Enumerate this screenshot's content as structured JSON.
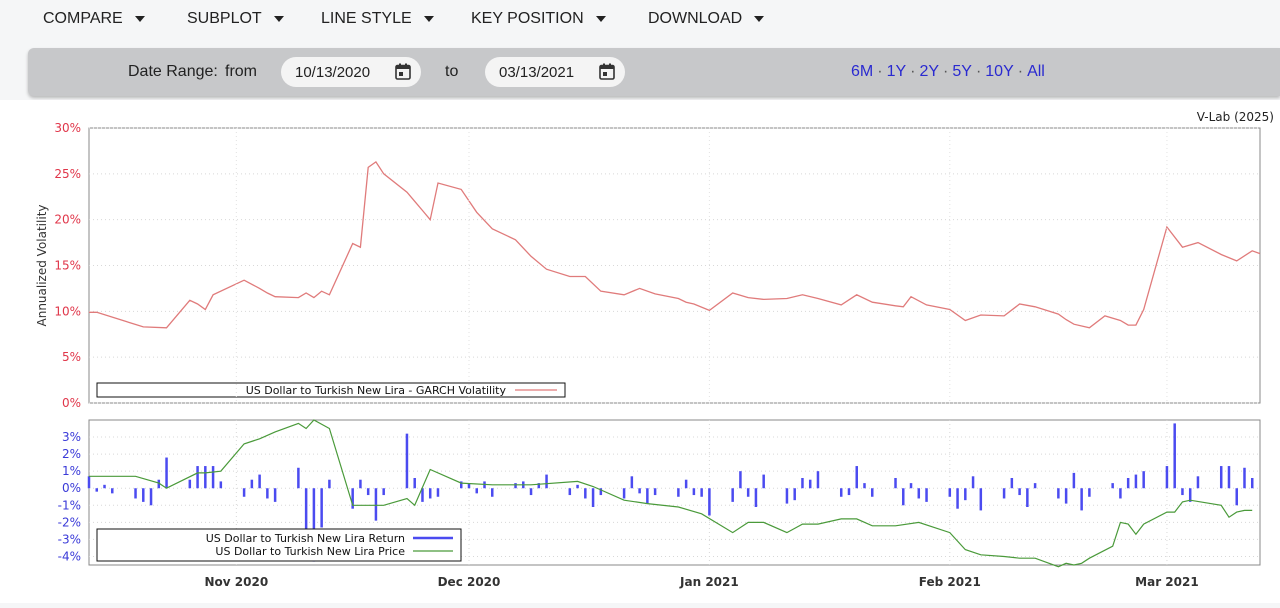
{
  "menu": [
    {
      "label": "COMPARE"
    },
    {
      "label": "SUBPLOT"
    },
    {
      "label": "LINE STYLE"
    },
    {
      "label": "KEY POSITION"
    },
    {
      "label": "DOWNLOAD"
    }
  ],
  "range": {
    "label": "Date Range:",
    "from_label": "from",
    "from_value": "10/13/2020",
    "to_label": "to",
    "to_value": "03/13/2021",
    "quick_links": [
      "6M",
      "1Y",
      "2Y",
      "5Y",
      "10Y",
      "All"
    ]
  },
  "credit": "V-Lab (2025)",
  "colors": {
    "volatility": "#e07b7b",
    "returns": "#4b4bf0",
    "price": "#4a9a3a",
    "vol_tick_labels": "#e0364a",
    "ret_tick_labels": "#3a3ad8"
  },
  "chart_data": [
    {
      "type": "line",
      "ylabel": "Annualized Volatility",
      "yticks": [
        "0%",
        "5%",
        "10%",
        "15%",
        "20%",
        "25%",
        "30%"
      ],
      "ylim": [
        0,
        30
      ],
      "grid": true,
      "legend_position": "bottom-left",
      "series": [
        {
          "name": "US Dollar to Turkish New Lira - GARCH Volatility",
          "x": [
            "2020-10-13",
            "2020-10-14",
            "2020-10-20",
            "2020-10-23",
            "2020-10-26",
            "2020-10-27",
            "2020-10-28",
            "2020-10-29",
            "2020-11-02",
            "2020-11-04",
            "2020-11-05",
            "2020-11-06",
            "2020-11-09",
            "2020-11-10",
            "2020-11-11",
            "2020-11-12",
            "2020-11-13",
            "2020-11-16",
            "2020-11-17",
            "2020-11-18",
            "2020-11-19",
            "2020-11-20",
            "2020-11-23",
            "2020-11-24",
            "2020-11-25",
            "2020-11-26",
            "2020-11-27",
            "2020-11-30",
            "2020-12-02",
            "2020-12-04",
            "2020-12-07",
            "2020-12-09",
            "2020-12-11",
            "2020-12-14",
            "2020-12-16",
            "2020-12-18",
            "2020-12-21",
            "2020-12-23",
            "2020-12-25",
            "2020-12-28",
            "2020-12-29",
            "2020-12-30",
            "2021-01-01",
            "2021-01-04",
            "2021-01-06",
            "2021-01-08",
            "2021-01-11",
            "2021-01-13",
            "2021-01-15",
            "2021-01-18",
            "2021-01-20",
            "2021-01-22",
            "2021-01-25",
            "2021-01-26",
            "2021-01-27",
            "2021-01-29",
            "2021-02-01",
            "2021-02-03",
            "2021-02-05",
            "2021-02-08",
            "2021-02-10",
            "2021-02-12",
            "2021-02-15",
            "2021-02-16",
            "2021-02-17",
            "2021-02-19",
            "2021-02-21",
            "2021-02-23",
            "2021-02-24",
            "2021-02-25",
            "2021-02-26",
            "2021-03-01",
            "2021-03-03",
            "2021-03-05",
            "2021-03-08",
            "2021-03-10",
            "2021-03-12",
            "2021-03-13"
          ],
          "y": [
            9.9,
            9.9,
            8.3,
            8.2,
            11.2,
            10.8,
            10.2,
            11.8,
            13.4,
            12.5,
            12.0,
            11.6,
            11.5,
            12.0,
            11.5,
            12.2,
            11.8,
            17.4,
            17.0,
            25.7,
            26.3,
            25.0,
            23.0,
            22.0,
            21.0,
            20.0,
            24.0,
            23.3,
            20.8,
            19.0,
            17.8,
            16.0,
            14.6,
            13.8,
            13.8,
            12.2,
            11.8,
            12.5,
            11.9,
            11.4,
            11.0,
            10.8,
            10.1,
            12.0,
            11.5,
            11.3,
            11.4,
            11.8,
            11.4,
            10.7,
            11.8,
            11.0,
            10.6,
            10.5,
            11.6,
            10.7,
            10.2,
            9.0,
            9.6,
            9.5,
            10.8,
            10.5,
            9.7,
            9.1,
            8.6,
            8.2,
            9.5,
            9.0,
            8.5,
            8.5,
            10.2,
            19.2,
            17.0,
            17.5,
            16.2,
            15.5,
            16.6,
            16.3
          ]
        }
      ]
    },
    {
      "type": "bar+line",
      "yticks": [
        "-4%",
        "-3%",
        "-2%",
        "-1%",
        "0%",
        "1%",
        "2%",
        "3%"
      ],
      "ylim": [
        -4.5,
        4
      ],
      "xticks": [
        "Nov 2020",
        "Dec 2020",
        "Jan 2021",
        "Feb 2021",
        "Mar 2021"
      ],
      "grid": true,
      "legend_position": "bottom-left",
      "series": [
        {
          "name": "US Dollar to Turkish New Lira Return",
          "type": "bar",
          "x": [
            "2020-10-13",
            "2020-10-14",
            "2020-10-15",
            "2020-10-16",
            "2020-10-19",
            "2020-10-20",
            "2020-10-21",
            "2020-10-22",
            "2020-10-23",
            "2020-10-26",
            "2020-10-27",
            "2020-10-28",
            "2020-10-29",
            "2020-10-30",
            "2020-11-02",
            "2020-11-03",
            "2020-11-04",
            "2020-11-05",
            "2020-11-06",
            "2020-11-09",
            "2020-11-10",
            "2020-11-11",
            "2020-11-12",
            "2020-11-13",
            "2020-11-16",
            "2020-11-17",
            "2020-11-18",
            "2020-11-19",
            "2020-11-20",
            "2020-11-23",
            "2020-11-24",
            "2020-11-25",
            "2020-11-26",
            "2020-11-27",
            "2020-11-30",
            "2020-12-01",
            "2020-12-02",
            "2020-12-03",
            "2020-12-04",
            "2020-12-07",
            "2020-12-08",
            "2020-12-09",
            "2020-12-10",
            "2020-12-11",
            "2020-12-14",
            "2020-12-15",
            "2020-12-16",
            "2020-12-17",
            "2020-12-18",
            "2020-12-21",
            "2020-12-22",
            "2020-12-23",
            "2020-12-24",
            "2020-12-25",
            "2020-12-28",
            "2020-12-29",
            "2020-12-30",
            "2020-12-31",
            "2021-01-01",
            "2021-01-04",
            "2021-01-05",
            "2021-01-06",
            "2021-01-07",
            "2021-01-08",
            "2021-01-11",
            "2021-01-12",
            "2021-01-13",
            "2021-01-14",
            "2021-01-15",
            "2021-01-18",
            "2021-01-19",
            "2021-01-20",
            "2021-01-21",
            "2021-01-22",
            "2021-01-25",
            "2021-01-26",
            "2021-01-27",
            "2021-01-28",
            "2021-01-29",
            "2021-02-01",
            "2021-02-02",
            "2021-02-03",
            "2021-02-04",
            "2021-02-05",
            "2021-02-08",
            "2021-02-09",
            "2021-02-10",
            "2021-02-11",
            "2021-02-12",
            "2021-02-15",
            "2021-02-16",
            "2021-02-17",
            "2021-02-18",
            "2021-02-19",
            "2021-02-22",
            "2021-02-23",
            "2021-02-24",
            "2021-02-25",
            "2021-02-26",
            "2021-03-01",
            "2021-03-02",
            "2021-03-03",
            "2021-03-04",
            "2021-03-05",
            "2021-03-08",
            "2021-03-09",
            "2021-03-10",
            "2021-03-11",
            "2021-03-12"
          ],
          "y": [
            0.7,
            -0.2,
            0.2,
            -0.3,
            -0.6,
            -0.8,
            -1.0,
            0.5,
            1.8,
            0.5,
            1.3,
            1.3,
            1.3,
            0.4,
            -0.5,
            0.5,
            0.8,
            -0.6,
            -0.8,
            1.2,
            -2.5,
            -4.3,
            -2.3,
            0.5,
            -1.2,
            0.5,
            -0.4,
            -1.9,
            -0.4,
            3.2,
            0.6,
            -0.8,
            -0.6,
            -0.5,
            0.4,
            0.3,
            -0.3,
            0.4,
            -0.5,
            0.3,
            0.4,
            -0.4,
            0.3,
            0.8,
            -0.4,
            0.2,
            -0.6,
            -1.1,
            -0.4,
            -0.6,
            0.7,
            -0.3,
            -0.9,
            -0.4,
            -0.5,
            0.5,
            -0.4,
            -0.5,
            -1.6,
            -0.8,
            1.0,
            -0.5,
            -1.1,
            0.8,
            -0.9,
            -0.7,
            0.6,
            0.5,
            1.0,
            -0.5,
            -0.4,
            1.3,
            0.3,
            -0.5,
            0.6,
            -1.0,
            0.3,
            -0.6,
            -0.8,
            -0.5,
            -1.2,
            -0.7,
            0.7,
            -1.3,
            -0.6,
            0.6,
            -0.4,
            -1.1,
            0.3,
            -0.6,
            -0.9,
            0.9,
            -1.3,
            -0.5,
            0.3,
            -0.6,
            0.6,
            0.8,
            1.0,
            1.3,
            3.8,
            -0.4,
            -0.8,
            0.7,
            1.3,
            1.3,
            -1.0,
            1.2,
            0.6
          ]
        },
        {
          "name": "US Dollar to Turkish New Lira Price",
          "type": "line",
          "x": [
            "2020-10-13",
            "2020-10-19",
            "2020-10-22",
            "2020-10-23",
            "2020-10-27",
            "2020-10-28",
            "2020-10-30",
            "2020-11-02",
            "2020-11-04",
            "2020-11-06",
            "2020-11-09",
            "2020-11-10",
            "2020-11-11",
            "2020-11-13",
            "2020-11-16",
            "2020-11-18",
            "2020-11-20",
            "2020-11-23",
            "2020-11-24",
            "2020-11-26",
            "2020-11-30",
            "2020-12-04",
            "2020-12-09",
            "2020-12-15",
            "2020-12-17",
            "2020-12-21",
            "2020-12-24",
            "2020-12-28",
            "2020-12-31",
            "2021-01-04",
            "2021-01-06",
            "2021-01-08",
            "2021-01-11",
            "2021-01-13",
            "2021-01-15",
            "2021-01-18",
            "2021-01-20",
            "2021-01-22",
            "2021-01-25",
            "2021-01-28",
            "2021-02-01",
            "2021-02-03",
            "2021-02-05",
            "2021-02-08",
            "2021-02-10",
            "2021-02-12",
            "2021-02-15",
            "2021-02-16",
            "2021-02-17",
            "2021-02-18",
            "2021-02-19",
            "2021-02-22",
            "2021-02-23",
            "2021-02-24",
            "2021-02-25",
            "2021-02-26",
            "2021-03-01",
            "2021-03-02",
            "2021-03-03",
            "2021-03-04",
            "2021-03-08",
            "2021-03-09",
            "2021-03-10",
            "2021-03-11",
            "2021-03-12"
          ],
          "y": [
            0.7,
            0.7,
            0.3,
            0,
            0.9,
            0.9,
            1.0,
            2.6,
            2.9,
            3.3,
            3.8,
            3.5,
            4.0,
            3.5,
            -1.0,
            -1.0,
            -1.0,
            -0.6,
            -1.0,
            1.1,
            0.3,
            0.2,
            0.2,
            0.4,
            0.1,
            -0.7,
            -0.9,
            -1.1,
            -1.5,
            -2.6,
            -2.0,
            -2.0,
            -2.6,
            -2.1,
            -2.1,
            -1.8,
            -1.8,
            -2.2,
            -2.2,
            -2.0,
            -2.6,
            -3.6,
            -3.9,
            -4.0,
            -4.1,
            -4.1,
            -4.6,
            -4.4,
            -4.5,
            -4.4,
            -4.1,
            -3.4,
            -2.0,
            -2.1,
            -2.7,
            -2.1,
            -1.4,
            -1.4,
            -0.8,
            -0.7,
            -1.0,
            -1.7,
            -1.4,
            -1.3,
            -1.3
          ]
        }
      ]
    }
  ]
}
